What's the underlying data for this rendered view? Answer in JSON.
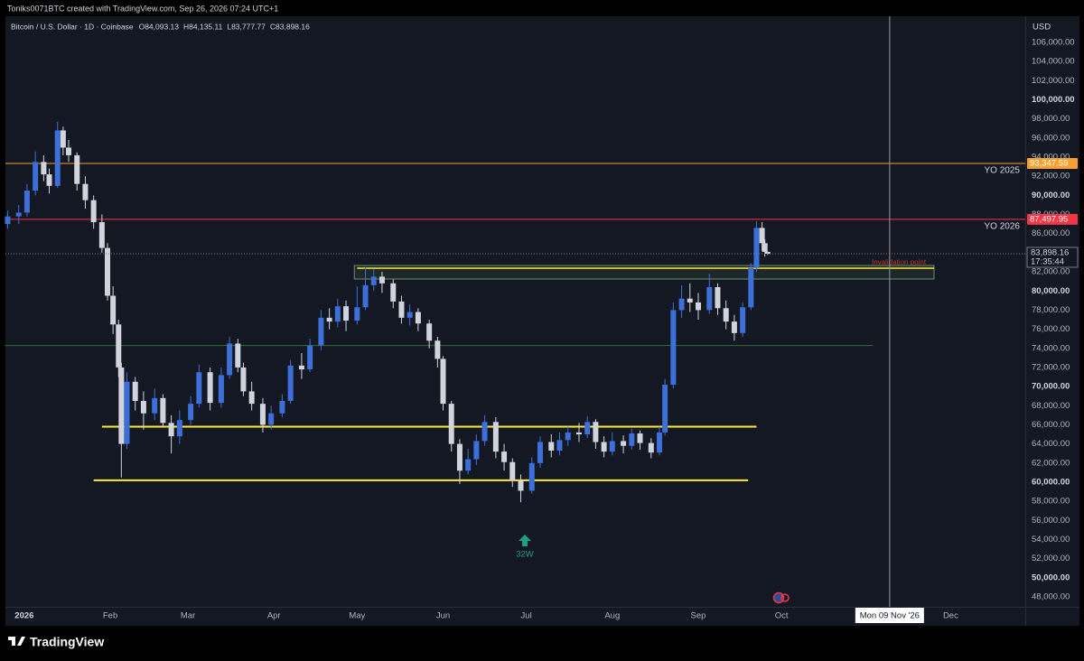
{
  "header": {
    "credit": "Toniks0071BTC created with TradingView.com, Sep 26, 2026 07:24 UTC+1",
    "symbol": "Bitcoin / U.S. Dollar · 1D · Coinbase",
    "ohlc_labels": [
      "O84,093.13",
      "H84,135.11",
      "L83,777.77",
      "C83,898.16"
    ]
  },
  "chart_data": {
    "type": "candlestick",
    "currency": "USD",
    "up_color": "#3d6fd9",
    "down_color": "#d1d4dc",
    "grid": false,
    "x": [
      -6,
      -2,
      1,
      4,
      7,
      9,
      12,
      14,
      16,
      19,
      22,
      25,
      28,
      30,
      32,
      34,
      35,
      37,
      40,
      43,
      47,
      50,
      53,
      56,
      60,
      63,
      67,
      71,
      74,
      77,
      79,
      82,
      86,
      89,
      93,
      96,
      100,
      103,
      107,
      110,
      113,
      116,
      120,
      123,
      126,
      129,
      133,
      136,
      139,
      142,
      146,
      149,
      151,
      154,
      157,
      160,
      163,
      166,
      170,
      173,
      176,
      179,
      183,
      186,
      190,
      193,
      196,
      200,
      203,
      206,
      209,
      212,
      216,
      219,
      222,
      226,
      229,
      231,
      234,
      237,
      240,
      243,
      247,
      250,
      253,
      256,
      259,
      262,
      264,
      266,
      267,
      268
    ],
    "open": [
      87000,
      87800,
      88200,
      90500,
      93500,
      92200,
      91000,
      96800,
      95000,
      94200,
      91200,
      89500,
      87200,
      84500,
      79500,
      76500,
      72000,
      64000,
      70500,
      68500,
      67200,
      68800,
      66200,
      64800,
      66500,
      68200,
      71500,
      68300,
      71200,
      74500,
      72000,
      69500,
      68200,
      66000,
      67200,
      68500,
      72200,
      71800,
      74300,
      77200,
      76800,
      78400,
      76900,
      78300,
      80600,
      81500,
      80800,
      78900,
      77200,
      77800,
      76600,
      74800,
      72900,
      68200,
      64000,
      61200,
      62400,
      64300,
      66300,
      63200,
      62100,
      60200,
      59100,
      62000,
      64200,
      63300,
      64400,
      65200,
      65000,
      66300,
      64200,
      63200,
      64300,
      63800,
      65100,
      64100,
      63100,
      65200,
      70200,
      78000,
      79200,
      78800,
      78000,
      80400,
      78200,
      76800,
      75600,
      78300,
      82400,
      86600,
      85000,
      84093.13
    ],
    "high": [
      88400,
      89000,
      91200,
      94600,
      94200,
      92800,
      97700,
      97200,
      95800,
      94500,
      92000,
      90000,
      88000,
      85000,
      80500,
      77000,
      72500,
      71500,
      71000,
      69500,
      69800,
      69200,
      67000,
      67500,
      69000,
      72300,
      72000,
      72000,
      75200,
      75000,
      72500,
      70500,
      68800,
      68000,
      69200,
      72800,
      73500,
      75000,
      78000,
      78200,
      79200,
      79000,
      80500,
      82500,
      82300,
      82000,
      81200,
      79500,
      78600,
      78200,
      77000,
      75200,
      73200,
      68500,
      64500,
      63500,
      65000,
      67000,
      66800,
      64000,
      62500,
      60800,
      62600,
      64800,
      65000,
      65200,
      65800,
      66200,
      66900,
      66600,
      64800,
      65200,
      64900,
      65600,
      65400,
      64600,
      65800,
      70800,
      78800,
      80600,
      80800,
      79800,
      81800,
      80800,
      79000,
      77500,
      78800,
      82900,
      87300,
      87200,
      85400,
      84135.11
    ],
    "low": [
      86500,
      87000,
      87800,
      90000,
      91500,
      90200,
      90800,
      94200,
      93500,
      90500,
      88600,
      86500,
      84000,
      79000,
      75500,
      71000,
      60500,
      63500,
      67500,
      65500,
      66500,
      65800,
      63000,
      64000,
      66000,
      67800,
      67500,
      67800,
      70800,
      71500,
      69000,
      67500,
      65200,
      65500,
      66800,
      68200,
      70800,
      71500,
      73800,
      76000,
      76200,
      75800,
      76500,
      78000,
      80000,
      79800,
      78200,
      76600,
      76400,
      75800,
      74000,
      72000,
      67500,
      63200,
      59800,
      60800,
      61800,
      63800,
      62500,
      61200,
      59500,
      57900,
      58800,
      61500,
      62600,
      62800,
      63800,
      64200,
      64600,
      63500,
      62600,
      62800,
      63000,
      63400,
      63400,
      62500,
      62800,
      64900,
      69800,
      77200,
      77800,
      77000,
      77600,
      77500,
      76000,
      74800,
      75200,
      78000,
      82000,
      84200,
      83600,
      83777.77
    ],
    "close": [
      87800,
      88200,
      90500,
      93500,
      92200,
      91000,
      96800,
      95000,
      94200,
      91200,
      89500,
      87200,
      84500,
      79500,
      76500,
      72000,
      64000,
      70500,
      68500,
      67200,
      68800,
      66200,
      64800,
      66500,
      68200,
      71500,
      68300,
      71200,
      74500,
      72000,
      69500,
      68200,
      66000,
      67200,
      68500,
      72200,
      71800,
      74300,
      77200,
      76800,
      78400,
      76900,
      78300,
      80600,
      81500,
      80800,
      78900,
      77200,
      77800,
      76600,
      74800,
      72900,
      68200,
      64000,
      61200,
      62400,
      64300,
      66300,
      63200,
      62100,
      60200,
      59100,
      62000,
      64200,
      63300,
      64400,
      65200,
      65000,
      66300,
      64200,
      63200,
      64300,
      63800,
      65100,
      64100,
      63100,
      65200,
      70200,
      78000,
      79200,
      78800,
      78000,
      80400,
      78200,
      76800,
      75600,
      78300,
      82400,
      86600,
      85000,
      84093.13,
      83898.16
    ],
    "xlim": [
      -6.8,
      360.9
    ],
    "ylim": [
      46960,
      108740
    ],
    "xticks": [
      {
        "value": 0,
        "label": "2026"
      },
      {
        "value": 31,
        "label": "Feb"
      },
      {
        "value": 59,
        "label": "Mar"
      },
      {
        "value": 90,
        "label": "Apr"
      },
      {
        "value": 120,
        "label": "May"
      },
      {
        "value": 151,
        "label": "Jun"
      },
      {
        "value": 181,
        "label": "Jul"
      },
      {
        "value": 212,
        "label": "Aug"
      },
      {
        "value": 243,
        "label": "Sep"
      },
      {
        "value": 273,
        "label": "Oct"
      },
      {
        "value": 334,
        "label": "Dec"
      }
    ],
    "yticks": [
      {
        "value": 48000,
        "label": "48,000.00"
      },
      {
        "value": 50000,
        "label": "50,000.00"
      },
      {
        "value": 52000,
        "label": "52,000.00"
      },
      {
        "value": 54000,
        "label": "54,000.00"
      },
      {
        "value": 56000,
        "label": "56,000.00"
      },
      {
        "value": 58000,
        "label": "58,000.00"
      },
      {
        "value": 60000,
        "label": "60,000.00"
      },
      {
        "value": 62000,
        "label": "62,000.00"
      },
      {
        "value": 64000,
        "label": "64,000.00"
      },
      {
        "value": 66000,
        "label": "66,000.00"
      },
      {
        "value": 68000,
        "label": "68,000.00"
      },
      {
        "value": 70000,
        "label": "70,000.00"
      },
      {
        "value": 72000,
        "label": "72,000.00"
      },
      {
        "value": 74000,
        "label": "74,000.00"
      },
      {
        "value": 76000,
        "label": "76,000.00"
      },
      {
        "value": 78000,
        "label": "78,000.00"
      },
      {
        "value": 80000,
        "label": "80,000.00"
      },
      {
        "value": 82000,
        "label": "82,000.00"
      },
      {
        "value": 84000,
        "label": "84,000.00"
      },
      {
        "value": 86000,
        "label": "86,000.00"
      },
      {
        "value": 88000,
        "label": "88,000.00"
      },
      {
        "value": 90000,
        "label": "90,000.00"
      },
      {
        "value": 92000,
        "label": "92,000.00"
      },
      {
        "value": 94000,
        "label": "94,000.00"
      },
      {
        "value": 96000,
        "label": "96,000.00"
      },
      {
        "value": 98000,
        "label": "98,000.00"
      },
      {
        "value": 100000,
        "label": "100,000.00"
      },
      {
        "value": 102000,
        "label": "102,000.00"
      },
      {
        "value": 104000,
        "label": "104,000.00"
      },
      {
        "value": 106000,
        "label": "106,000.00"
      }
    ],
    "levels": [
      {
        "name": "YO 2025",
        "value": 93347.59,
        "label": "93,347.59",
        "color": "#f5a030"
      },
      {
        "name": "YO 2026",
        "value": 87497.95,
        "label": "87,497.95",
        "color": "#f23645"
      }
    ],
    "last_price": {
      "value": 83898.16,
      "label": "83,898.16",
      "countdown": "17:35:44"
    },
    "lines": [
      {
        "y": 74300,
        "x": [
          -7,
          306
        ],
        "color": "#2e6b35",
        "width": 1
      },
      {
        "y": 65800,
        "x": [
          28,
          264
        ],
        "color": "#ffe83b",
        "width": 2
      },
      {
        "y": 60200,
        "x": [
          25,
          261
        ],
        "color": "#ffe83b",
        "width": 2
      },
      {
        "y": 82380,
        "x": [
          120,
          328
        ],
        "color": "#ffe83b",
        "width": 1.5
      }
    ],
    "boxes": [
      {
        "y": [
          81250,
          82665
        ],
        "x": [
          119,
          328
        ],
        "color": "#6b8f6b"
      }
    ],
    "crosshair": {
      "x": 312,
      "label": "Mon 09 Nov '26"
    },
    "annotations": {
      "invalidation": "Invalidation point",
      "marker": "32W"
    }
  },
  "footer": {
    "brand": "TradingView"
  }
}
